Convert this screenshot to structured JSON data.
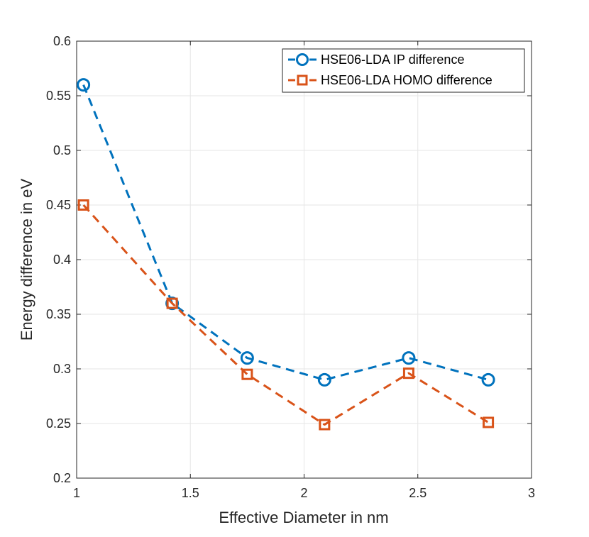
{
  "chart_data": {
    "type": "line",
    "title": "",
    "xlabel": "Effective Diameter in nm",
    "ylabel": "Energy difference in eV",
    "xlim": [
      1,
      3
    ],
    "ylim": [
      0.2,
      0.6
    ],
    "xticks": [
      1,
      1.5,
      2,
      2.5,
      3
    ],
    "xtick_labels": [
      "1",
      "1.5",
      "2",
      "2.5",
      "3"
    ],
    "yticks": [
      0.2,
      0.25,
      0.3,
      0.35,
      0.4,
      0.45,
      0.5,
      0.55,
      0.6
    ],
    "ytick_labels": [
      "0.2",
      "0.25",
      "0.3",
      "0.35",
      "0.4",
      "0.45",
      "0.5",
      "0.55",
      "0.6"
    ],
    "grid": true,
    "legend_position": "top-right",
    "x": [
      1.03,
      1.42,
      1.75,
      2.09,
      2.46,
      2.81
    ],
    "series": [
      {
        "name": "HSE06-LDA IP difference",
        "values": [
          0.56,
          0.36,
          0.31,
          0.29,
          0.31,
          0.29
        ],
        "color": "#0072BD",
        "marker": "circle",
        "line_style": "dashed"
      },
      {
        "name": "HSE06-LDA HOMO difference",
        "values": [
          0.45,
          0.36,
          0.295,
          0.249,
          0.296,
          0.251
        ],
        "color": "#D95319",
        "marker": "square",
        "line_style": "dashed"
      }
    ]
  }
}
